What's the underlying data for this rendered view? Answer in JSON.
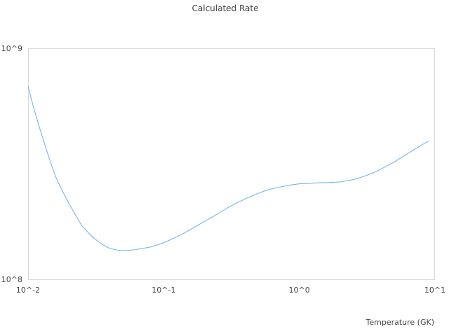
{
  "chart_data": {
    "type": "line",
    "title": "Calculated Rate",
    "xlabel": "Temperature (GK)",
    "ylabel": "",
    "x_scale": "log",
    "y_scale": "log",
    "xlim": [
      0.01,
      10
    ],
    "ylim": [
      100000000,
      1000000000
    ],
    "x_ticks": [
      "10^-2",
      "10^-1",
      "10^0",
      "10^1"
    ],
    "y_ticks": [
      "10^8",
      "10^9"
    ],
    "grid": false,
    "legend": "none",
    "series": [
      {
        "color": "#6aaee6",
        "x": [
          0.01,
          0.011,
          0.012,
          0.013,
          0.014,
          0.015,
          0.016,
          0.018,
          0.02,
          0.022,
          0.025,
          0.03,
          0.035,
          0.04,
          0.045,
          0.05,
          0.06,
          0.07,
          0.08,
          0.09,
          0.1,
          0.12,
          0.14,
          0.16,
          0.18,
          0.2,
          0.25,
          0.3,
          0.35,
          0.4,
          0.5,
          0.6,
          0.7,
          0.8,
          0.9,
          1.0,
          1.2,
          1.4,
          1.6,
          1.8,
          2.0,
          2.5,
          3.0,
          3.5,
          4.0,
          5.0,
          6.0,
          7.0,
          8.0,
          9.0
        ],
        "y": [
          684000000,
          552000000,
          464000000,
          399000000,
          348000000,
          308000000,
          277000000,
          240000000,
          213000000,
          193000000,
          170000000,
          152000000,
          142000000,
          136000000,
          134000000,
          133000000,
          134000000,
          136000000,
          138000000,
          141000000,
          144000000,
          151000000,
          158000000,
          165000000,
          172000000,
          178000000,
          192000000,
          205000000,
          215000000,
          223000000,
          236000000,
          245000000,
          250000000,
          254000000,
          257000000,
          259000000,
          260000000,
          262000000,
          262000000,
          263000000,
          264000000,
          270000000,
          279000000,
          289000000,
          300000000,
          322000000,
          344000000,
          364000000,
          382000000,
          397000000
        ]
      }
    ]
  }
}
